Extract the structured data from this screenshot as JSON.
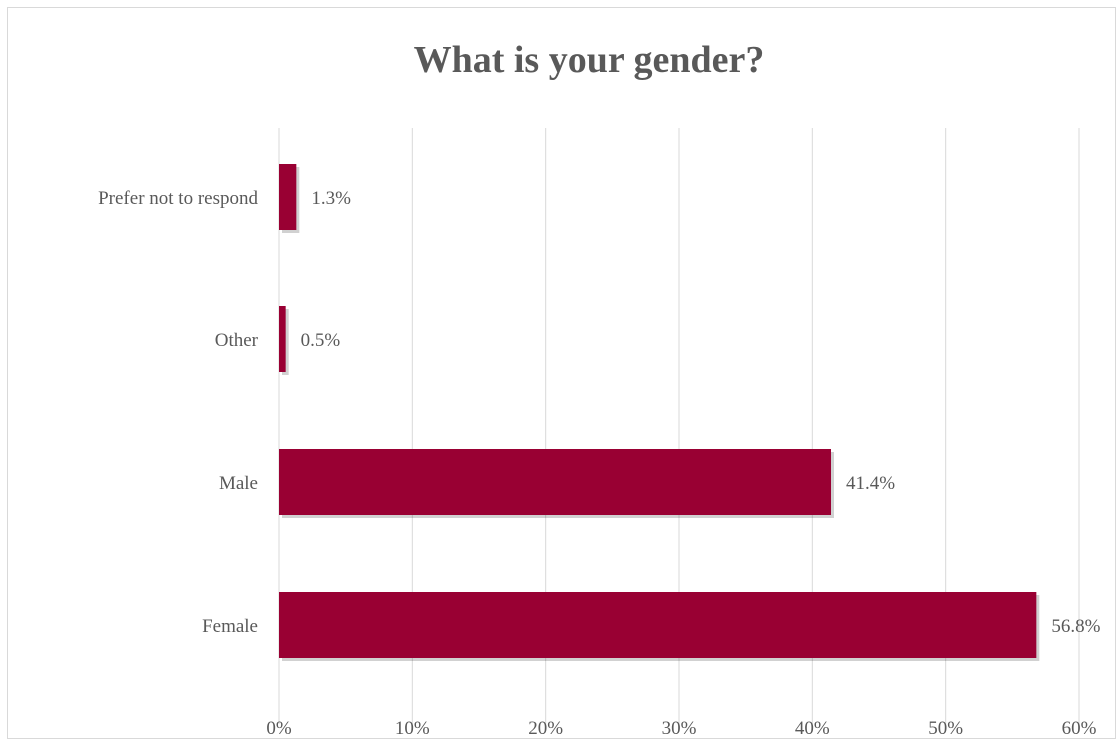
{
  "chart_data": {
    "type": "bar",
    "orientation": "horizontal",
    "title": "What is your gender?",
    "categories": [
      "Prefer not to respond",
      "Other",
      "Male",
      "Female"
    ],
    "values": [
      1.3,
      0.5,
      41.4,
      56.8
    ],
    "data_labels": [
      "1.3%",
      "0.5%",
      "41.4%",
      "56.8%"
    ],
    "xlim": [
      0,
      60
    ],
    "x_ticks": [
      0,
      10,
      20,
      30,
      40,
      50,
      60
    ],
    "x_tick_labels": [
      "0%",
      "10%",
      "20%",
      "30%",
      "40%",
      "50%",
      "60%"
    ],
    "xlabel": "",
    "ylabel": "",
    "grid": "vertical",
    "legend": "none",
    "colors": {
      "bar": "#990033",
      "grid": "#d9d9d9",
      "text": "#595959"
    }
  }
}
